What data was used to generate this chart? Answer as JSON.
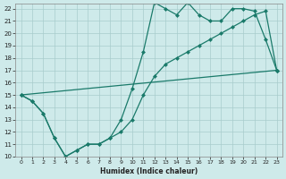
{
  "xlabel": "Humidex (Indice chaleur)",
  "bg_color": "#ceeaea",
  "grid_color": "#a8cccc",
  "line_color": "#1a7a6a",
  "xlim": [
    -0.5,
    23.5
  ],
  "ylim": [
    10,
    22.4
  ],
  "xticks": [
    0,
    1,
    2,
    3,
    4,
    5,
    6,
    7,
    8,
    9,
    10,
    11,
    12,
    13,
    14,
    15,
    16,
    17,
    18,
    19,
    20,
    21,
    22,
    23
  ],
  "yticks": [
    10,
    11,
    12,
    13,
    14,
    15,
    16,
    17,
    18,
    19,
    20,
    21,
    22
  ],
  "series1_x": [
    0,
    1,
    2,
    3,
    4,
    5,
    6,
    7,
    8,
    9,
    10,
    11,
    12,
    13,
    14,
    15,
    16,
    17,
    18,
    19,
    20,
    21,
    22,
    23
  ],
  "series1_y": [
    15,
    14.5,
    13.5,
    11.5,
    10.0,
    10.5,
    11.0,
    11.0,
    11.5,
    13.0,
    15.5,
    18.5,
    22.5,
    22.0,
    21.5,
    22.5,
    21.5,
    21.0,
    21.0,
    22.0,
    22.0,
    21.8,
    19.5,
    17.0
  ],
  "series2_x": [
    0,
    1,
    2,
    3,
    4,
    5,
    6,
    7,
    8,
    9,
    10,
    11,
    12,
    13,
    14,
    15,
    16,
    17,
    18,
    19,
    20,
    21,
    22,
    23
  ],
  "series2_y": [
    15,
    14.5,
    13.5,
    11.5,
    10.0,
    10.5,
    11.0,
    11.0,
    11.5,
    12.0,
    13.0,
    15.0,
    16.5,
    17.5,
    18.0,
    18.5,
    19.0,
    19.5,
    20.0,
    20.5,
    21.0,
    21.5,
    21.8,
    17.0
  ],
  "series3_x": [
    0,
    23
  ],
  "series3_y": [
    15,
    17.0
  ]
}
